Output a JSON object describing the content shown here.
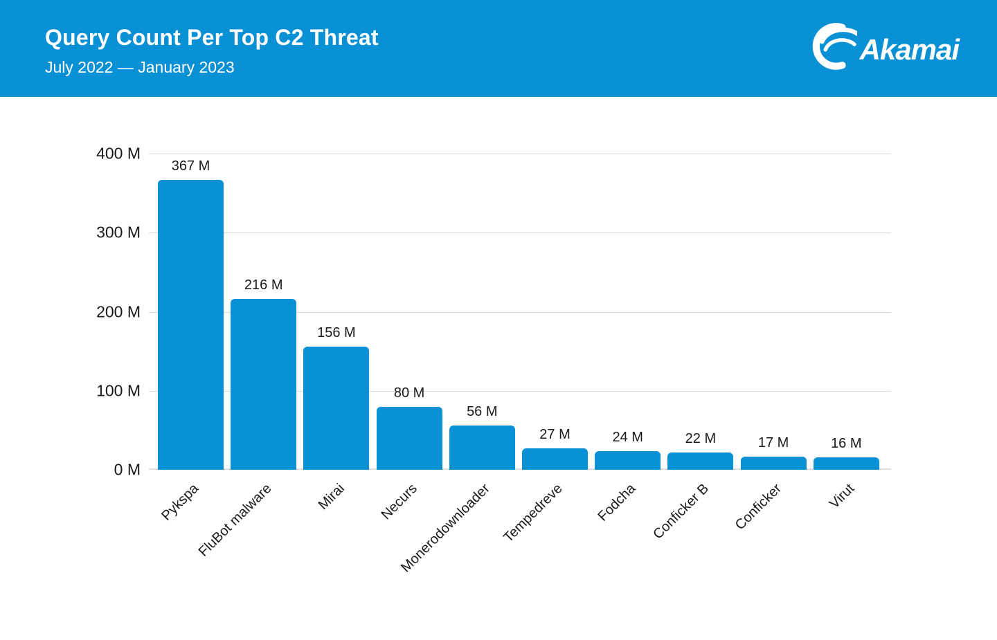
{
  "header": {
    "title": "Query Count Per Top C2 Threat",
    "subtitle": "July 2022 — January 2023",
    "brand": "Akamai",
    "background_color": "#0A90D4",
    "text_color": "#FFFFFF"
  },
  "chart_data": {
    "type": "bar",
    "title": "Query Count Per Top C2 Threat",
    "subtitle": "July 2022 — January 2023",
    "categories": [
      "Pykspa",
      "FluBot malware",
      "Mirai",
      "Necurs",
      "Monerodownloader",
      "Tempedreve",
      "Fodcha",
      "Conficker B",
      "Conficker",
      "Virut"
    ],
    "values": [
      367,
      216,
      156,
      80,
      56,
      27,
      24,
      22,
      17,
      16
    ],
    "value_labels": [
      "367 M",
      "216 M",
      "156 M",
      "80 M",
      "56 M",
      "27 M",
      "24 M",
      "22 M",
      "17 M",
      "16 M"
    ],
    "unit": "M",
    "xlabel": "",
    "ylabel": "",
    "ylim": [
      0,
      400
    ],
    "yticks": [
      0,
      100,
      200,
      300,
      400
    ],
    "ytick_labels": [
      "0 M",
      "100 M",
      "200 M",
      "300 M",
      "400 M"
    ],
    "grid": true,
    "legend": null,
    "bar_color": "#0A90D4",
    "label_color": "#1A1A1A",
    "gridline_color": "#D9D9D9"
  }
}
